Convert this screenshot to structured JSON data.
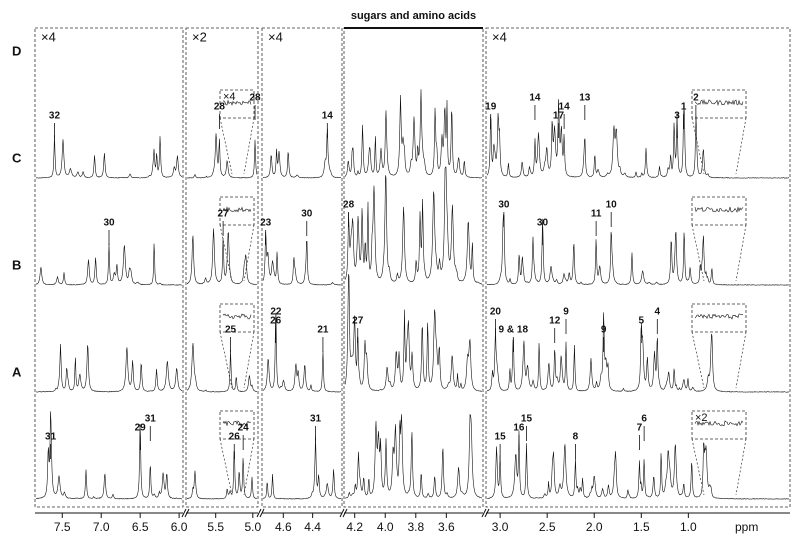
{
  "traces": [
    "D",
    "C",
    "B",
    "A"
  ],
  "x_unit": "ppm",
  "panels": [
    {
      "xlim": [
        7.85,
        5.95
      ],
      "scale": "×4",
      "xticks": [
        7.5,
        {
          "value": 7,
          "label": "7.0"
        },
        6.5,
        {
          "value": 6,
          "label": "6.0"
        }
      ]
    },
    {
      "xlim": [
        5.9,
        4.93
      ],
      "scale": "×2",
      "xticks": [
        5.5,
        {
          "value": 5,
          "label": "5.0"
        }
      ]
    },
    {
      "xlim": [
        4.745,
        4.2
      ],
      "scale": "×4",
      "xticks": [
        4.6,
        4.4
      ]
    },
    {
      "xlim": [
        4.27,
        3.36
      ],
      "title": "sugars and amino acids",
      "xticks": [
        4.2,
        {
          "value": 4,
          "label": "4.0"
        },
        3.8,
        3.6
      ]
    },
    {
      "xlim": [
        3.15,
        -0.08
      ],
      "scale": "×4",
      "xticks": [
        {
          "value": 3,
          "label": "3.0"
        },
        2.5,
        {
          "value": 2,
          "label": "2.0"
        },
        1.5,
        {
          "value": 1,
          "label": "1.0"
        }
      ]
    }
  ],
  "insets": [
    {
      "trace": "D",
      "panel": 1,
      "label": "×4"
    },
    {
      "trace": "A",
      "panel": 4,
      "label": "×2"
    }
  ],
  "annotations": [
    {
      "trace": "D",
      "ppm": 7.6,
      "label": "32"
    },
    {
      "trace": "D",
      "ppm": 5.45,
      "label": "28"
    },
    {
      "trace": "D",
      "ppm": 4.97,
      "label": "28"
    },
    {
      "trace": "D",
      "ppm": 4.3,
      "label": "14"
    },
    {
      "trace": "D",
      "ppm": 3.1,
      "label": "19"
    },
    {
      "trace": "D",
      "ppm": 2.63,
      "label": "14"
    },
    {
      "trace": "D",
      "ppm": 2.38,
      "label": "17"
    },
    {
      "trace": "D",
      "ppm": 2.32,
      "label": "14"
    },
    {
      "trace": "D",
      "ppm": 2.1,
      "label": "13"
    },
    {
      "trace": "D",
      "ppm": 1.12,
      "label": "3"
    },
    {
      "trace": "D",
      "ppm": 1.05,
      "label": "1"
    },
    {
      "trace": "D",
      "ppm": 0.92,
      "label": "2"
    },
    {
      "trace": "C",
      "ppm": 6.9,
      "label": "30"
    },
    {
      "trace": "C",
      "ppm": 5.4,
      "label": "27"
    },
    {
      "trace": "C",
      "ppm": 4.24,
      "label": "28"
    },
    {
      "trace": "C",
      "ppm": 4.72,
      "label": "23"
    },
    {
      "trace": "C",
      "ppm": 4.44,
      "label": "30"
    },
    {
      "trace": "C",
      "ppm": 2.96,
      "label": "30"
    },
    {
      "trace": "C",
      "ppm": 2.55,
      "label": "30"
    },
    {
      "trace": "C",
      "ppm": 1.98,
      "label": "11"
    },
    {
      "trace": "C",
      "ppm": 1.82,
      "label": "10"
    },
    {
      "trace": "B",
      "ppm": 5.3,
      "label": "25"
    },
    {
      "trace": "B",
      "ppm": 4.76,
      "label": "26"
    },
    {
      "trace": "B",
      "ppm": 4.65,
      "label": "22"
    },
    {
      "trace": "B",
      "ppm": 4.33,
      "label": "21"
    },
    {
      "trace": "B",
      "ppm": 4.18,
      "label": "27"
    },
    {
      "trace": "B",
      "ppm": 3.05,
      "label": "20"
    },
    {
      "trace": "B",
      "ppm": 2.86,
      "label": "9 & 18"
    },
    {
      "trace": "B",
      "ppm": 2.42,
      "label": "12"
    },
    {
      "trace": "B",
      "ppm": 2.3,
      "label": "9"
    },
    {
      "trace": "B",
      "ppm": 1.9,
      "label": "9"
    },
    {
      "trace": "B",
      "ppm": 1.5,
      "label": "5"
    },
    {
      "trace": "B",
      "ppm": 1.33,
      "label": "4"
    },
    {
      "trace": "A",
      "ppm": 7.65,
      "label": "31"
    },
    {
      "trace": "A",
      "ppm": 6.5,
      "label": "29"
    },
    {
      "trace": "A",
      "ppm": 6.37,
      "label": "31"
    },
    {
      "trace": "A",
      "ppm": 5.25,
      "label": "26"
    },
    {
      "trace": "A",
      "ppm": 5.13,
      "label": "24"
    },
    {
      "trace": "A",
      "ppm": 4.38,
      "label": "31"
    },
    {
      "trace": "A",
      "ppm": 3.0,
      "label": "15"
    },
    {
      "trace": "A",
      "ppm": 2.8,
      "label": "16"
    },
    {
      "trace": "A",
      "ppm": 2.72,
      "label": "15"
    },
    {
      "trace": "A",
      "ppm": 2.2,
      "label": "8"
    },
    {
      "trace": "A",
      "ppm": 1.52,
      "label": "7"
    },
    {
      "trace": "A",
      "ppm": 1.47,
      "label": "6"
    }
  ]
}
